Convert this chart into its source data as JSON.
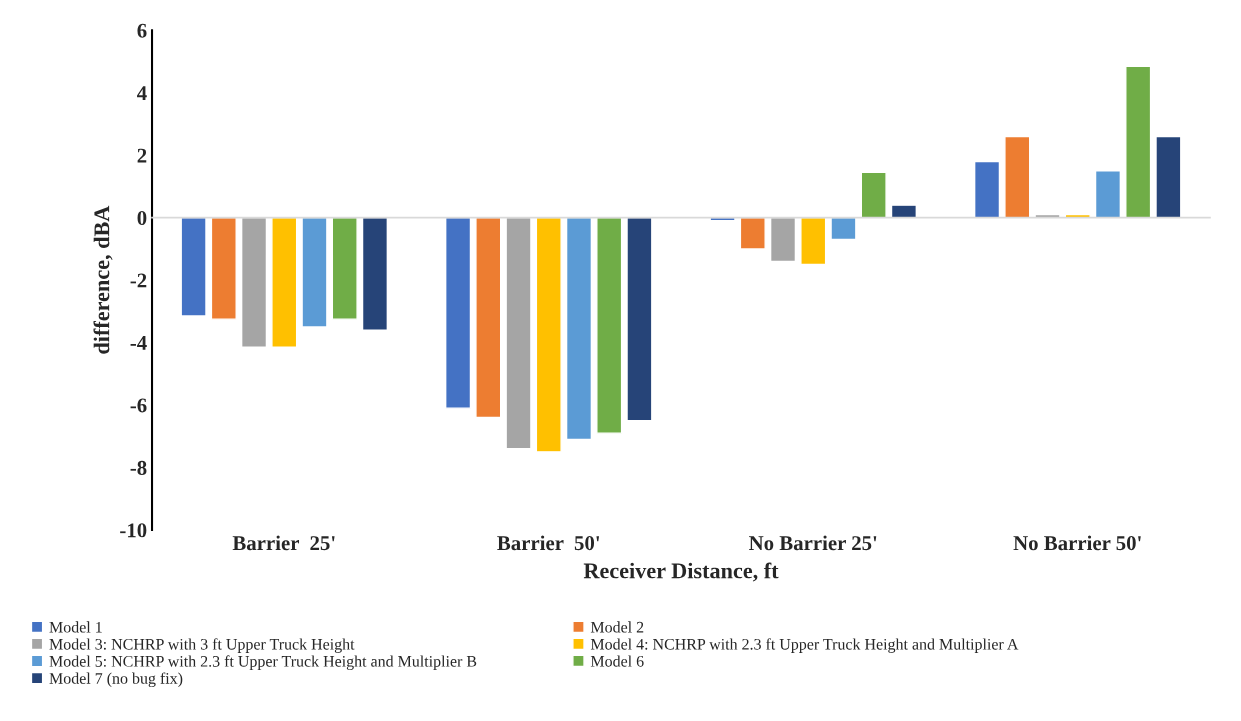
{
  "chart_data": {
    "type": "bar",
    "xlabel": "Receiver Distance, ft",
    "ylabel": "difference, dBA",
    "categories": [
      "Barrier  25'",
      "Barrier  50'",
      "No Barrier 25'",
      "No Barrier 50'"
    ],
    "series": [
      {
        "name": "Model 1",
        "color": "#4472c4",
        "values": [
          -3.15,
          -6.1,
          -0.1,
          1.8
        ]
      },
      {
        "name": "Model 2",
        "color": "#ed7d31",
        "values": [
          -3.25,
          -6.4,
          -1.0,
          2.6
        ]
      },
      {
        "name": "Model 3: NCHRP with 3 ft Upper Truck Height",
        "color": "#a5a5a5",
        "values": [
          -4.15,
          -7.4,
          -1.4,
          0.1
        ]
      },
      {
        "name": "Model 4: NCHRP with 2.3 ft Upper Truck Height and Multiplier A",
        "color": "#ffc000",
        "values": [
          -4.15,
          -7.5,
          -1.5,
          0.1
        ]
      },
      {
        "name": "Model 5: NCHRP with 2.3 ft Upper Truck Height and Multiplier B",
        "color": "#5b9bd5",
        "values": [
          -3.5,
          -7.1,
          -0.7,
          1.5
        ]
      },
      {
        "name": "Model 6",
        "color": "#70ad47",
        "values": [
          -3.25,
          -6.9,
          1.45,
          4.85
        ]
      },
      {
        "name": "Model 7 (no bug fix)",
        "color": "#264478",
        "values": [
          -3.6,
          -6.5,
          0.4,
          2.6
        ]
      }
    ],
    "ylim": [
      -10,
      6
    ],
    "yticks": [
      -10,
      -8,
      -6,
      -4,
      -2,
      0,
      2,
      4,
      6
    ],
    "legend": "bottom"
  }
}
